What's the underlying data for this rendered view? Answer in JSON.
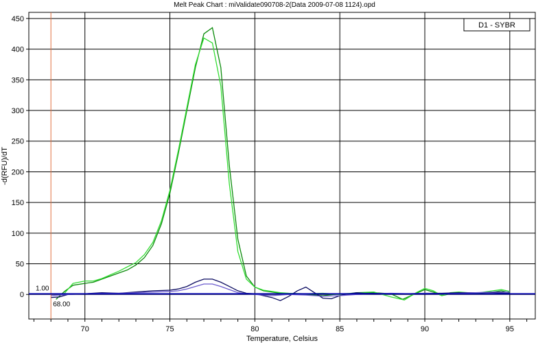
{
  "chart_data": {
    "type": "line",
    "title": "Melt Peak Chart : miValidate090708-2(Data 2009-07-08 1124).opd",
    "xlabel": "Temperature, Celsius",
    "ylabel": "-d(RFU)/dT",
    "xlim": [
      66.7,
      96.5
    ],
    "ylim": [
      -40,
      460
    ],
    "x_ticks": [
      70,
      75,
      80,
      85,
      90,
      95
    ],
    "y_ticks": [
      0,
      50,
      100,
      150,
      200,
      250,
      300,
      350,
      400,
      450
    ],
    "grid": true,
    "legend": {
      "position": "top-right",
      "label": "D1 - SYBR"
    },
    "threshold": {
      "value": 1.0,
      "label": "1.00",
      "color": "#0000aa"
    },
    "marker": {
      "x": 68.0,
      "label": "68.00",
      "color": "#e07040"
    },
    "series": [
      {
        "color": "#0a8a0a",
        "points": [
          [
            68.3,
            -8
          ],
          [
            68.8,
            5
          ],
          [
            69.3,
            15
          ],
          [
            70.0,
            18
          ],
          [
            70.5,
            20
          ],
          [
            71.0,
            25
          ],
          [
            71.5,
            30
          ],
          [
            72.0,
            35
          ],
          [
            72.5,
            40
          ],
          [
            73.0,
            48
          ],
          [
            73.5,
            60
          ],
          [
            74.0,
            80
          ],
          [
            74.5,
            115
          ],
          [
            75.0,
            165
          ],
          [
            75.5,
            230
          ],
          [
            76.0,
            300
          ],
          [
            76.5,
            370
          ],
          [
            77.0,
            425
          ],
          [
            77.5,
            435
          ],
          [
            78.0,
            370
          ],
          [
            78.5,
            210
          ],
          [
            79.0,
            90
          ],
          [
            79.5,
            30
          ],
          [
            80.0,
            12
          ],
          [
            80.5,
            6
          ],
          [
            81.0,
            4
          ],
          [
            81.5,
            2
          ],
          [
            82.0,
            1
          ],
          [
            82.5,
            1
          ],
          [
            83.0,
            0
          ],
          [
            84.0,
            -2
          ],
          [
            85.0,
            1
          ],
          [
            86.0,
            2
          ],
          [
            87.0,
            3
          ],
          [
            88.0,
            1
          ],
          [
            88.7,
            -8
          ],
          [
            89.5,
            2
          ],
          [
            90.0,
            8
          ],
          [
            90.5,
            4
          ],
          [
            91.0,
            -2
          ],
          [
            91.5,
            1
          ],
          [
            92.0,
            3
          ],
          [
            93.0,
            2
          ],
          [
            94.0,
            4
          ],
          [
            94.5,
            6
          ],
          [
            95.0,
            3
          ]
        ]
      },
      {
        "color": "#33dd33",
        "points": [
          [
            68.8,
            2
          ],
          [
            69.3,
            18
          ],
          [
            70.0,
            22
          ],
          [
            70.5,
            22
          ],
          [
            71.0,
            26
          ],
          [
            71.5,
            32
          ],
          [
            72.0,
            38
          ],
          [
            72.5,
            45
          ],
          [
            73.0,
            52
          ],
          [
            73.5,
            65
          ],
          [
            74.0,
            85
          ],
          [
            74.5,
            120
          ],
          [
            75.0,
            170
          ],
          [
            75.5,
            235
          ],
          [
            76.0,
            305
          ],
          [
            76.5,
            375
          ],
          [
            77.0,
            418
          ],
          [
            77.5,
            410
          ],
          [
            78.0,
            340
          ],
          [
            78.5,
            180
          ],
          [
            79.0,
            70
          ],
          [
            79.5,
            25
          ],
          [
            80.0,
            12
          ],
          [
            80.5,
            7
          ],
          [
            81.0,
            5
          ],
          [
            81.5,
            3
          ],
          [
            82.0,
            2
          ],
          [
            83.0,
            1
          ],
          [
            84.0,
            2
          ],
          [
            85.0,
            0
          ],
          [
            86.0,
            3
          ],
          [
            87.0,
            4
          ],
          [
            88.0,
            -4
          ],
          [
            88.8,
            -9
          ],
          [
            89.5,
            3
          ],
          [
            90.0,
            10
          ],
          [
            90.5,
            6
          ],
          [
            91.0,
            -2
          ],
          [
            91.5,
            3
          ],
          [
            92.0,
            4
          ],
          [
            93.0,
            2
          ],
          [
            94.0,
            6
          ],
          [
            94.5,
            8
          ],
          [
            95.0,
            5
          ]
        ]
      },
      {
        "color": "#0a0a60",
        "points": [
          [
            68.0,
            -5
          ],
          [
            68.5,
            -4
          ],
          [
            69.0,
            0
          ],
          [
            70.0,
            1
          ],
          [
            71.0,
            3
          ],
          [
            72.0,
            2
          ],
          [
            73.0,
            4
          ],
          [
            74.0,
            6
          ],
          [
            75.0,
            7
          ],
          [
            75.5,
            9
          ],
          [
            76.0,
            13
          ],
          [
            76.5,
            20
          ],
          [
            77.0,
            25
          ],
          [
            77.5,
            25
          ],
          [
            78.0,
            20
          ],
          [
            78.5,
            13
          ],
          [
            79.0,
            6
          ],
          [
            79.5,
            2
          ],
          [
            80.0,
            1
          ],
          [
            80.5,
            -2
          ],
          [
            81.0,
            -5
          ],
          [
            81.5,
            -10
          ],
          [
            82.0,
            -3
          ],
          [
            82.5,
            6
          ],
          [
            83.0,
            12
          ],
          [
            83.5,
            3
          ],
          [
            84.0,
            -6
          ],
          [
            84.5,
            -7
          ],
          [
            85.0,
            -2
          ],
          [
            85.5,
            1
          ],
          [
            86.0,
            3
          ],
          [
            86.5,
            2
          ],
          [
            87.0,
            2
          ],
          [
            88.0,
            1
          ],
          [
            89.0,
            1
          ],
          [
            90.0,
            2
          ],
          [
            91.0,
            2
          ],
          [
            92.0,
            3
          ],
          [
            93.0,
            3
          ],
          [
            94.0,
            3
          ],
          [
            95.0,
            2
          ]
        ]
      },
      {
        "color": "#6a5acd",
        "points": [
          [
            68.0,
            -2
          ],
          [
            69.0,
            0
          ],
          [
            70.0,
            1
          ],
          [
            71.0,
            2
          ],
          [
            72.0,
            2
          ],
          [
            73.0,
            3
          ],
          [
            74.0,
            4
          ],
          [
            75.0,
            5
          ],
          [
            75.5,
            6
          ],
          [
            76.0,
            9
          ],
          [
            76.5,
            13
          ],
          [
            77.0,
            17
          ],
          [
            77.5,
            17
          ],
          [
            78.0,
            13
          ],
          [
            78.5,
            8
          ],
          [
            79.0,
            3
          ],
          [
            79.5,
            1
          ],
          [
            80.0,
            0
          ],
          [
            81.0,
            -2
          ],
          [
            82.0,
            0
          ],
          [
            83.0,
            -1
          ],
          [
            84.0,
            -3
          ],
          [
            85.0,
            -2
          ],
          [
            86.0,
            0
          ],
          [
            87.0,
            1
          ],
          [
            88.0,
            2
          ],
          [
            89.0,
            1
          ],
          [
            90.0,
            2
          ],
          [
            91.0,
            1
          ],
          [
            92.0,
            2
          ],
          [
            93.0,
            3
          ],
          [
            94.0,
            4
          ],
          [
            95.0,
            4
          ]
        ]
      }
    ]
  }
}
